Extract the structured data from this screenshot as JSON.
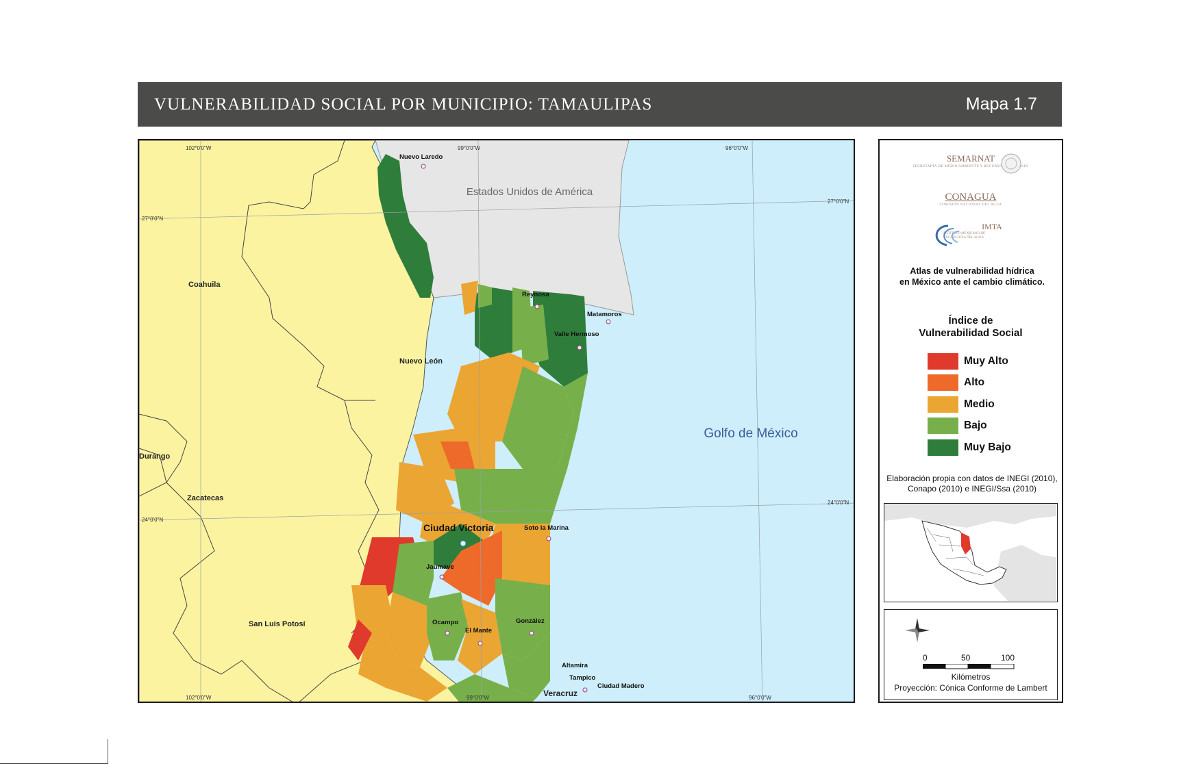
{
  "header": {
    "title": "VULNERABILIDAD SOCIAL POR MUNICIPIO: TAMAULIPAS",
    "map_number": "Mapa 1.7"
  },
  "map": {
    "country_label": "Estados Unidos de América",
    "gulf_label": "Golfo de México",
    "states": {
      "coahuila": "Coahuila",
      "nuevo_leon": "Nuevo León",
      "durango": "Durango",
      "zacatecas": "Zacatecas",
      "san_luis_potosi": "San Luis Potosí",
      "veracruz": "Veracruz"
    },
    "cities": {
      "nuevo_laredo": "Nuevo Laredo",
      "reynosa": "Reynosa",
      "matamoros": "Matamoros",
      "valle_hermoso": "Valle Hermoso",
      "ciudad_victoria": "Ciudad Victoria",
      "soto_la_marina": "Soto la Marina",
      "jaumave": "Jaumave",
      "ocampo": "Ocampo",
      "el_mante": "El Mante",
      "gonzalez": "González",
      "altamira": "Altamira",
      "tampico": "Tampico",
      "ciudad_madero": "Ciudad Madero"
    },
    "graticule": {
      "top": [
        "102°0'0\"W",
        "99°0'0\"W",
        "96°0'0\"W"
      ],
      "bottom": [
        "102°0'0\"W",
        "99°0'0\"W",
        "96°0'0\"W"
      ],
      "left": [
        "27°0'0\"N",
        "24°0'0\"N"
      ],
      "right": [
        "27°0'0\"N",
        "24°0'0\"N"
      ]
    },
    "colors": {
      "muy_alto": "#e03a2c",
      "alto": "#ee6a2a",
      "medio": "#eba533",
      "bajo": "#77b04a",
      "muy_bajo": "#2f7d3b",
      "neighbor_states": "#fbf3a0",
      "usa": "#e6e6e6",
      "sea": "#cdeefa"
    }
  },
  "sidebar": {
    "logos": {
      "semarnat": "SEMARNAT",
      "semarnat_sub": "SECRETARÍA DE MEDIO AMBIENTE Y RECURSOS NATURALES",
      "conagua": "CONAGUA",
      "conagua_sub": "COMISIÓN NACIONAL DEL AGUA",
      "imta": "IMTA",
      "imta_sub": "INSTITUTO MEXICANO DE TECNOLOGÍA DEL AGUA"
    },
    "atlas_line1": "Atlas de vulnerabilidad hídrica",
    "atlas_line2": "en México ante el cambio climático.",
    "legend_title_line1": "Índice de",
    "legend_title_line2": "Vulnerabilidad Social",
    "legend": [
      {
        "label": "Muy Alto",
        "color": "#e03a2c"
      },
      {
        "label": "Alto",
        "color": "#ee6a2a"
      },
      {
        "label": "Medio",
        "color": "#eba533"
      },
      {
        "label": "Bajo",
        "color": "#77b04a"
      },
      {
        "label": "Muy Bajo",
        "color": "#2f7d3b"
      }
    ],
    "source_line1": "Elaboración propia con datos de INEGI (2010),",
    "source_line2": "Conapo (2010) e INEGI/Ssa (2010)",
    "scale": {
      "ticks": [
        "0",
        "50",
        "100"
      ],
      "units": "Kilómetros",
      "projection": "Proyección: Cónica Conforme de Lambert"
    }
  }
}
